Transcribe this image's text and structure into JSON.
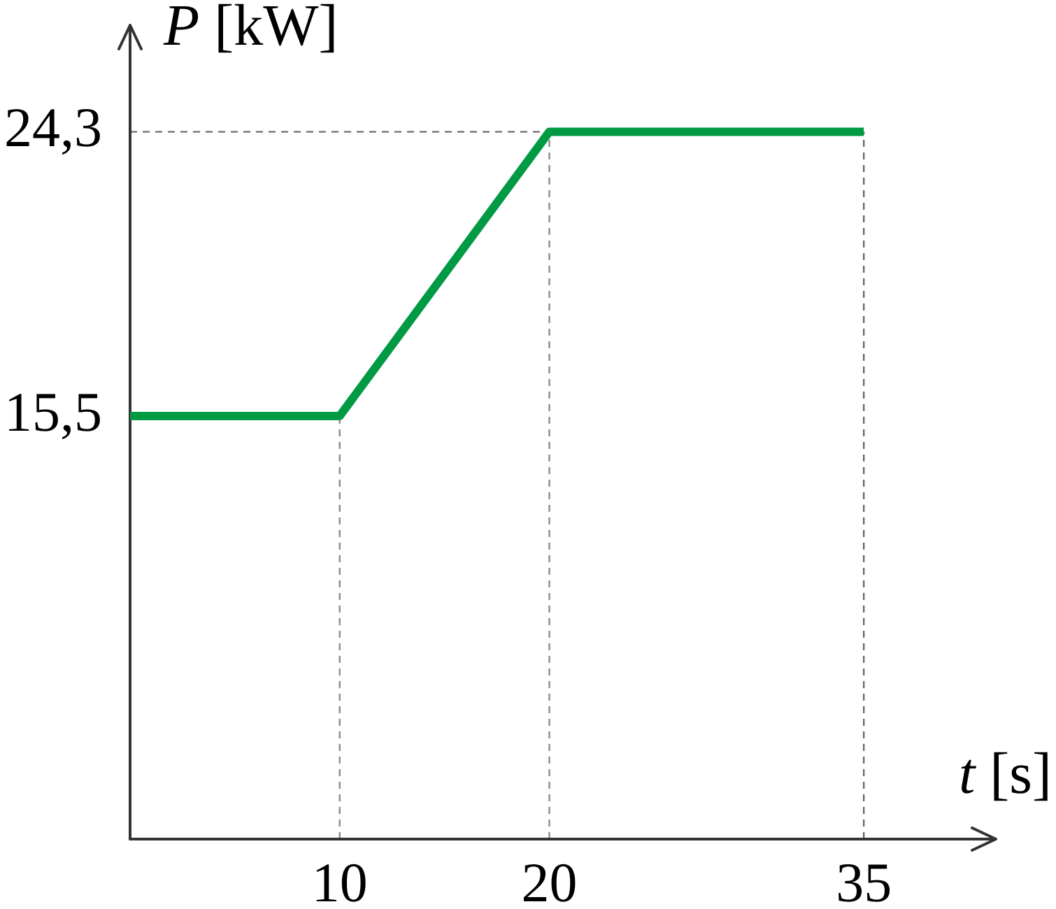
{
  "chart_data": {
    "type": "line",
    "xlabel": "t [s]",
    "ylabel": "P [kW]",
    "x": [
      0,
      10,
      20,
      35
    ],
    "series": [
      {
        "color": "#009a44",
        "values": [
          15.5,
          15.5,
          24.3,
          24.3
        ]
      }
    ],
    "xlim": [
      0,
      41.3
    ],
    "ylim": [
      2.4,
      27.6
    ],
    "xticks": [
      10,
      20,
      35
    ],
    "yticks": [
      {
        "value": 15.5,
        "label": "15,5"
      },
      {
        "value": 24.3,
        "label": "24,3"
      }
    ],
    "ref_lines": [
      {
        "axis": "x",
        "value": 10,
        "color": "#8a8a8a",
        "line_style": "dashed"
      },
      {
        "axis": "x",
        "value": 20,
        "color": "#8a8a8a",
        "line_style": "dashed"
      },
      {
        "axis": "x",
        "value": 35,
        "color": "#6a6a6a",
        "line_style": "dashed"
      },
      {
        "axis": "y",
        "value": 24.3,
        "color": "#7a7a7a",
        "line_style": "dashed"
      }
    ],
    "marker": "none",
    "line_style": "solid"
  }
}
